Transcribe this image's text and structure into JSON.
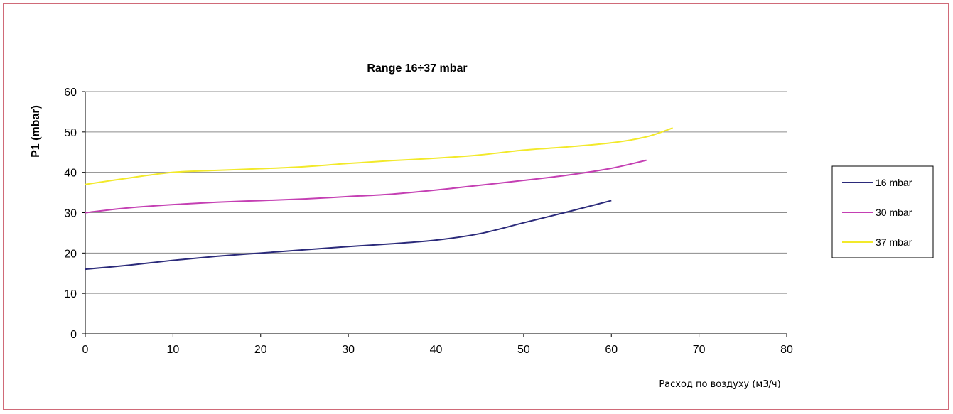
{
  "chart_data": {
    "type": "line",
    "title": "Range 16÷37 mbar",
    "xlabel": "Расход по воздуху (м3/ч)",
    "ylabel": "P1 (mbar)",
    "xlim": [
      0,
      80
    ],
    "ylim": [
      0,
      60
    ],
    "x_ticks": [
      "0",
      "10",
      "20",
      "30",
      "40",
      "50",
      "60",
      "70",
      "80"
    ],
    "y_ticks": [
      "0",
      "10",
      "20",
      "30",
      "40",
      "50",
      "60"
    ],
    "grid": "horizontal",
    "legend_position": "right",
    "series": [
      {
        "name": "16 mbar",
        "color": "#2b2a7a",
        "points": [
          [
            0,
            16
          ],
          [
            5,
            17
          ],
          [
            10,
            18.2
          ],
          [
            15,
            19.2
          ],
          [
            20,
            20
          ],
          [
            25,
            20.8
          ],
          [
            30,
            21.6
          ],
          [
            35,
            22.3
          ],
          [
            40,
            23.2
          ],
          [
            45,
            24.8
          ],
          [
            50,
            27.5
          ],
          [
            55,
            30.2
          ],
          [
            60,
            33
          ]
        ]
      },
      {
        "name": "30 mbar",
        "color": "#c43fb3",
        "points": [
          [
            0,
            30
          ],
          [
            5,
            31.2
          ],
          [
            10,
            32
          ],
          [
            15,
            32.6
          ],
          [
            20,
            33
          ],
          [
            25,
            33.4
          ],
          [
            30,
            34
          ],
          [
            35,
            34.6
          ],
          [
            40,
            35.6
          ],
          [
            45,
            36.8
          ],
          [
            50,
            38
          ],
          [
            55,
            39.3
          ],
          [
            60,
            41
          ],
          [
            64,
            43
          ]
        ]
      },
      {
        "name": "37 mbar",
        "color": "#f2e92a",
        "points": [
          [
            0,
            37
          ],
          [
            5,
            38.6
          ],
          [
            10,
            40
          ],
          [
            15,
            40.5
          ],
          [
            20,
            40.9
          ],
          [
            25,
            41.4
          ],
          [
            30,
            42.2
          ],
          [
            35,
            42.9
          ],
          [
            40,
            43.5
          ],
          [
            45,
            44.3
          ],
          [
            50,
            45.5
          ],
          [
            55,
            46.3
          ],
          [
            60,
            47.3
          ],
          [
            64,
            48.8
          ],
          [
            67,
            51
          ]
        ]
      }
    ]
  }
}
